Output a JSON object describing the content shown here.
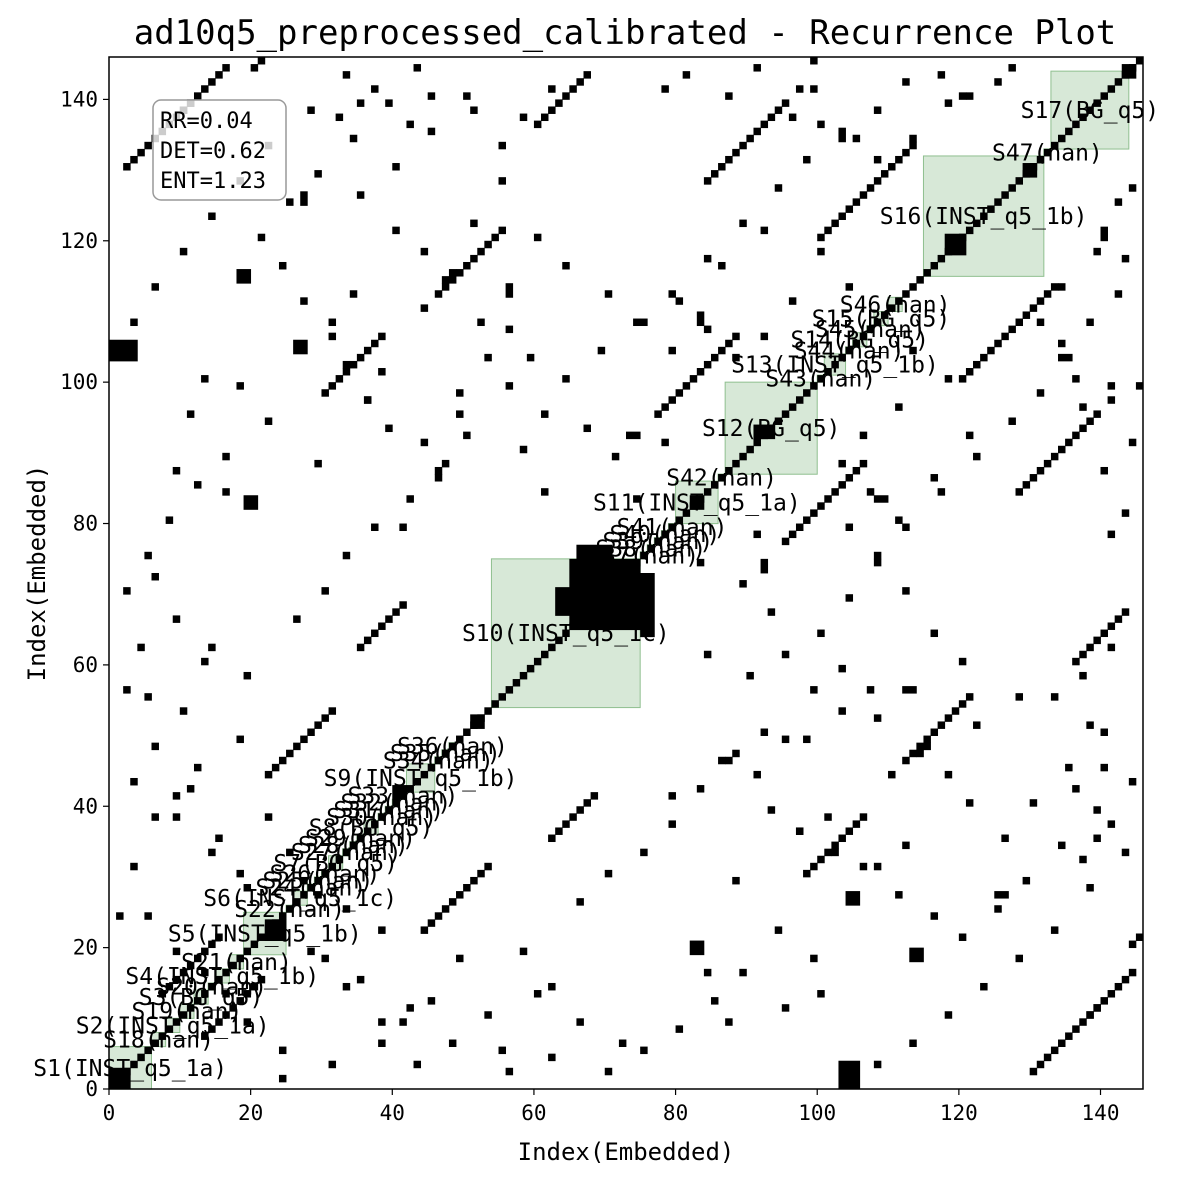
{
  "chart_data": {
    "type": "heatmap",
    "title": "ad10q5_preprocessed_calibrated - Recurrence Plot",
    "xlabel": "Index(Embedded)",
    "ylabel": "Index(Embedded)",
    "xlim": [
      0,
      146
    ],
    "ylim": [
      0,
      146
    ],
    "xticks": [
      0,
      20,
      40,
      60,
      80,
      100,
      120,
      140
    ],
    "yticks": [
      0,
      20,
      40,
      60,
      80,
      100,
      120,
      140
    ],
    "stats": {
      "rr": "RR=0.04",
      "det": "DET=0.62",
      "ent": "ENT=1.23"
    },
    "colors": {
      "recurrence": "#000000",
      "segment_fill": "#bcd9bc",
      "segment_edge": "#8fbf8f"
    },
    "segments": [
      {
        "label": "S1(INST_q5_1a)",
        "start": 0,
        "end": 6
      },
      {
        "label": "S18(nan)",
        "start": 6,
        "end": 8
      },
      {
        "label": "S2(INST_q5_1a)",
        "start": 8,
        "end": 10
      },
      {
        "label": "S19(nan)",
        "start": 10,
        "end": 12
      },
      {
        "label": "S3(BG_q5)",
        "start": 12,
        "end": 14
      },
      {
        "label": "S20(nan)",
        "start": 14,
        "end": 15
      },
      {
        "label": "S4(INST_q5_1b)",
        "start": 15,
        "end": 17
      },
      {
        "label": "S21(nan)",
        "start": 17,
        "end": 19
      },
      {
        "label": "S5(INST_q5_1b)",
        "start": 19,
        "end": 25
      },
      {
        "label": "S22(nan)",
        "start": 25,
        "end": 26
      },
      {
        "label": "S6(INST_q5_1c)",
        "start": 26,
        "end": 28
      },
      {
        "label": "S24(nan)",
        "start": 28,
        "end": 29
      },
      {
        "label": "S25(nan)",
        "start": 29,
        "end": 30
      },
      {
        "label": "S26(nan)",
        "start": 30,
        "end": 31
      },
      {
        "label": "S7(BG_q5)",
        "start": 31,
        "end": 33
      },
      {
        "label": "S27(nan)",
        "start": 33,
        "end": 34
      },
      {
        "label": "S28(nan)",
        "start": 34,
        "end": 35
      },
      {
        "label": "S29(nan)",
        "start": 35,
        "end": 36
      },
      {
        "label": "S8(BG_q5)",
        "start": 36,
        "end": 38
      },
      {
        "label": "S30(nan)",
        "start": 38,
        "end": 39
      },
      {
        "label": "S31(nan)",
        "start": 39,
        "end": 40
      },
      {
        "label": "S32(nan)",
        "start": 40,
        "end": 41
      },
      {
        "label": "S33(nan)",
        "start": 41,
        "end": 42
      },
      {
        "label": "S9(INST_q5_1b)",
        "start": 42,
        "end": 46
      },
      {
        "label": "S34(nan)",
        "start": 46,
        "end": 47
      },
      {
        "label": "S35(nan)",
        "start": 47,
        "end": 48
      },
      {
        "label": "S36(nan)",
        "start": 48,
        "end": 49
      },
      {
        "label": "S10(INST_q5_1c)",
        "start": 54,
        "end": 75
      },
      {
        "label": "S37(nan)",
        "start": 75,
        "end": 76
      },
      {
        "label": "S38(nan)",
        "start": 76,
        "end": 77
      },
      {
        "label": "S39(nan)",
        "start": 77,
        "end": 78
      },
      {
        "label": "S40(nan)",
        "start": 78,
        "end": 79
      },
      {
        "label": "S41(nan)",
        "start": 79,
        "end": 80
      },
      {
        "label": "S11(INST_q5_1a)",
        "start": 80,
        "end": 86
      },
      {
        "label": "S42(nan)",
        "start": 86,
        "end": 87
      },
      {
        "label": "S12(BG_q5)",
        "start": 87,
        "end": 100
      },
      {
        "label": "S43(nan)",
        "start": 100,
        "end": 101
      },
      {
        "label": "S13(INST_q5_1b)",
        "start": 101,
        "end": 104
      },
      {
        "label": "S44(nan)",
        "start": 104,
        "end": 105
      },
      {
        "label": "S14(BG_q5)",
        "start": 105,
        "end": 107
      },
      {
        "label": "S45(nan)",
        "start": 107,
        "end": 108
      },
      {
        "label": "S15(BG_q5)",
        "start": 108,
        "end": 110
      },
      {
        "label": "S46(nan)",
        "start": 110,
        "end": 112
      },
      {
        "label": "S16(INST_q5_1b)",
        "start": 115,
        "end": 132
      },
      {
        "label": "S47(nan)",
        "start": 132,
        "end": 133
      },
      {
        "label": "S17(BG_q5)",
        "start": 133,
        "end": 144
      }
    ],
    "blocks": [
      {
        "x": 65,
        "y": 65,
        "w": 10,
        "h": 10
      },
      {
        "x": 63,
        "y": 67,
        "w": 2,
        "h": 4
      },
      {
        "x": 75,
        "y": 64,
        "w": 2,
        "h": 9
      },
      {
        "x": 66,
        "y": 75,
        "w": 5,
        "h": 2
      },
      {
        "x": 118,
        "y": 118,
        "w": 3,
        "h": 3
      },
      {
        "x": 0,
        "y": 103,
        "w": 4,
        "h": 3
      },
      {
        "x": 103,
        "y": 0,
        "w": 3,
        "h": 4
      },
      {
        "x": 22,
        "y": 21,
        "w": 3,
        "h": 3
      },
      {
        "x": 0,
        "y": 0,
        "w": 3,
        "h": 3
      },
      {
        "x": 129,
        "y": 129,
        "w": 2,
        "h": 2
      },
      {
        "x": 143,
        "y": 143,
        "w": 2,
        "h": 2
      },
      {
        "x": 91,
        "y": 92,
        "w": 3,
        "h": 2
      },
      {
        "x": 18,
        "y": 114,
        "w": 2,
        "h": 2
      },
      {
        "x": 113,
        "y": 18,
        "w": 2,
        "h": 2
      },
      {
        "x": 26,
        "y": 104,
        "w": 2,
        "h": 2
      },
      {
        "x": 104,
        "y": 26,
        "w": 2,
        "h": 2
      },
      {
        "x": 73,
        "y": 92,
        "w": 2,
        "h": 1
      },
      {
        "x": 92,
        "y": 73,
        "w": 1,
        "h": 2
      },
      {
        "x": 108,
        "y": 83,
        "w": 2,
        "h": 1
      },
      {
        "x": 83,
        "y": 108,
        "w": 1,
        "h": 2
      },
      {
        "x": 134,
        "y": 103,
        "w": 2,
        "h": 1
      },
      {
        "x": 103,
        "y": 134,
        "w": 1,
        "h": 2
      },
      {
        "x": 82,
        "y": 19,
        "w": 2,
        "h": 2
      },
      {
        "x": 19,
        "y": 82,
        "w": 2,
        "h": 2
      },
      {
        "x": 112,
        "y": 56,
        "w": 2,
        "h": 1
      },
      {
        "x": 56,
        "y": 112,
        "w": 1,
        "h": 2
      },
      {
        "x": 125,
        "y": 27,
        "w": 2,
        "h": 1
      },
      {
        "x": 27,
        "y": 125,
        "w": 1,
        "h": 2
      },
      {
        "x": 40,
        "y": 41,
        "w": 2,
        "h": 2
      },
      {
        "x": 82,
        "y": 82,
        "w": 2,
        "h": 2
      },
      {
        "x": 51,
        "y": 51,
        "w": 2,
        "h": 2
      }
    ],
    "diagonals": [
      {
        "x0": 7,
        "y0": 13,
        "len": 9
      },
      {
        "x0": 13,
        "y0": 7,
        "len": 9
      },
      {
        "x0": 44,
        "y0": 22,
        "len": 10
      },
      {
        "x0": 22,
        "y0": 44,
        "len": 10
      },
      {
        "x0": 95,
        "y0": 77,
        "len": 12
      },
      {
        "x0": 77,
        "y0": 95,
        "len": 12
      },
      {
        "x0": 120,
        "y0": 100,
        "len": 14
      },
      {
        "x0": 100,
        "y0": 120,
        "len": 14
      },
      {
        "x0": 130,
        "y0": 2,
        "len": 10
      },
      {
        "x0": 2,
        "y0": 130,
        "len": 10
      },
      {
        "x0": 84,
        "y0": 128,
        "len": 12
      },
      {
        "x0": 128,
        "y0": 84,
        "len": 12
      },
      {
        "x0": 98,
        "y0": 30,
        "len": 9
      },
      {
        "x0": 30,
        "y0": 98,
        "len": 9
      },
      {
        "x0": 112,
        "y0": 46,
        "len": 10
      },
      {
        "x0": 46,
        "y0": 112,
        "len": 10
      },
      {
        "x0": 60,
        "y0": 136,
        "len": 8
      },
      {
        "x0": 136,
        "y0": 60,
        "len": 8
      },
      {
        "x0": 35,
        "y0": 62,
        "len": 7
      },
      {
        "x0": 62,
        "y0": 35,
        "len": 7
      },
      {
        "x0": 138,
        "y0": 10,
        "len": 7
      },
      {
        "x0": 10,
        "y0": 138,
        "len": 7
      }
    ],
    "scatter": [
      [
        20,
        144
      ],
      [
        21,
        145
      ],
      [
        32,
        137
      ],
      [
        35,
        139
      ],
      [
        37,
        141
      ],
      [
        42,
        136
      ],
      [
        45,
        140
      ],
      [
        51,
        138
      ],
      [
        55,
        133
      ],
      [
        58,
        137
      ],
      [
        62,
        141
      ],
      [
        78,
        141
      ],
      [
        81,
        143
      ],
      [
        87,
        140
      ],
      [
        91,
        144
      ],
      [
        96,
        137
      ],
      [
        99,
        141
      ],
      [
        105,
        134
      ],
      [
        108,
        138
      ],
      [
        112,
        142
      ],
      [
        117,
        143
      ],
      [
        121,
        140
      ],
      [
        36,
        97
      ],
      [
        38,
        101
      ],
      [
        31,
        108
      ],
      [
        34,
        112
      ],
      [
        44,
        91
      ],
      [
        46,
        86
      ],
      [
        41,
        79
      ],
      [
        49,
        95
      ],
      [
        29,
        88
      ],
      [
        16,
        84
      ],
      [
        13,
        100
      ],
      [
        9,
        87
      ],
      [
        6,
        72
      ],
      [
        11,
        95
      ],
      [
        4,
        62
      ],
      [
        13,
        60
      ],
      [
        18,
        49
      ],
      [
        11,
        42
      ],
      [
        6,
        38
      ],
      [
        3,
        31
      ],
      [
        1,
        24
      ],
      [
        2,
        56
      ],
      [
        5,
        55
      ],
      [
        56,
        99
      ],
      [
        59,
        103
      ],
      [
        52,
        108
      ],
      [
        47,
        114
      ],
      [
        44,
        118
      ],
      [
        51,
        122
      ],
      [
        55,
        128
      ],
      [
        60,
        120
      ],
      [
        64,
        116
      ],
      [
        70,
        112
      ],
      [
        75,
        108
      ],
      [
        79,
        104
      ],
      [
        86,
        116
      ],
      [
        92,
        121
      ],
      [
        67,
        93
      ],
      [
        71,
        89
      ],
      [
        61,
        84
      ],
      [
        74,
        83
      ],
      [
        78,
        91
      ],
      [
        90,
        58
      ],
      [
        95,
        61
      ],
      [
        100,
        64
      ],
      [
        104,
        69
      ],
      [
        108,
        74
      ],
      [
        112,
        79
      ],
      [
        117,
        84
      ],
      [
        122,
        89
      ],
      [
        127,
        94
      ],
      [
        131,
        98
      ],
      [
        136,
        100
      ],
      [
        141,
        97
      ],
      [
        145,
        99
      ],
      [
        98,
        49
      ],
      [
        103,
        53
      ],
      [
        107,
        56
      ],
      [
        110,
        44
      ],
      [
        115,
        48
      ],
      [
        121,
        40
      ],
      [
        126,
        35
      ],
      [
        130,
        40
      ],
      [
        135,
        45
      ],
      [
        140,
        50
      ],
      [
        143,
        33
      ],
      [
        138,
        28
      ],
      [
        133,
        22
      ],
      [
        128,
        18
      ],
      [
        123,
        14
      ],
      [
        118,
        10
      ],
      [
        113,
        6
      ],
      [
        108,
        3
      ],
      [
        99,
        18
      ],
      [
        94,
        22
      ],
      [
        89,
        16
      ],
      [
        85,
        12
      ],
      [
        80,
        8
      ],
      [
        75,
        5
      ],
      [
        70,
        2
      ],
      [
        66,
        9
      ],
      [
        62,
        14
      ],
      [
        58,
        19
      ],
      [
        53,
        10
      ],
      [
        48,
        6
      ],
      [
        43,
        3
      ],
      [
        38,
        9
      ],
      [
        33,
        14
      ],
      [
        28,
        19
      ],
      [
        24,
        5
      ],
      [
        19,
        9
      ],
      [
        16,
        13
      ],
      [
        88,
        47
      ],
      [
        93,
        39
      ],
      [
        97,
        36
      ],
      [
        102,
        33
      ],
      [
        106,
        31
      ],
      [
        111,
        27
      ],
      [
        116,
        24
      ],
      [
        120,
        21
      ],
      [
        125,
        25
      ],
      [
        129,
        29
      ],
      [
        134,
        34
      ],
      [
        139,
        39
      ],
      [
        144,
        43
      ],
      [
        26,
        66
      ],
      [
        30,
        70
      ],
      [
        33,
        75
      ],
      [
        37,
        79
      ],
      [
        42,
        83
      ],
      [
        46,
        87
      ],
      [
        50,
        92
      ],
      [
        100,
        118
      ],
      [
        104,
        113
      ],
      [
        96,
        111
      ],
      [
        92,
        106
      ],
      [
        88,
        103
      ],
      [
        84,
        107
      ],
      [
        80,
        111
      ],
      [
        140,
        120
      ],
      [
        142,
        125
      ],
      [
        144,
        127
      ],
      [
        139,
        118
      ],
      [
        134,
        113
      ],
      [
        131,
        108
      ],
      [
        9,
        41
      ],
      [
        12,
        45
      ],
      [
        15,
        35
      ],
      [
        18,
        30
      ],
      [
        22,
        38
      ],
      [
        25,
        33
      ],
      [
        29,
        27
      ]
    ]
  }
}
